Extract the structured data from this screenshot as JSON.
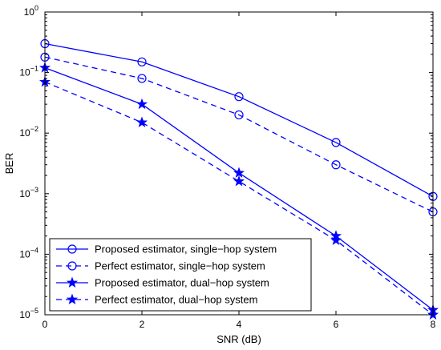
{
  "chart_data": {
    "type": "line",
    "title": "",
    "xlabel": "SNR (dB)",
    "ylabel": "BER",
    "x": [
      0,
      2,
      4,
      6,
      8
    ],
    "xlim": [
      0,
      8
    ],
    "ylim": [
      1e-05,
      1
    ],
    "yscale": "log",
    "x_ticks": [
      "0",
      "2",
      "4",
      "6",
      "8"
    ],
    "y_ticks": [
      {
        "base": "10",
        "exp": "0"
      },
      {
        "base": "10",
        "exp": "−1"
      },
      {
        "base": "10",
        "exp": "−2"
      },
      {
        "base": "10",
        "exp": "−3"
      },
      {
        "base": "10",
        "exp": "−4"
      },
      {
        "base": "10",
        "exp": "−5"
      }
    ],
    "grid": false,
    "legend_position": "bottom-left",
    "line_color": "#0000ff",
    "series": [
      {
        "name": "Proposed estimator, single−hop system",
        "marker": "circle",
        "linestyle": "solid",
        "values": [
          0.3,
          0.15,
          0.04,
          0.007,
          0.0009
        ]
      },
      {
        "name": "Perfect estimator, single−hop system",
        "marker": "circle",
        "linestyle": "dashed",
        "values": [
          0.18,
          0.08,
          0.02,
          0.003,
          0.0005
        ]
      },
      {
        "name": "Proposed estimator, dual−hop system",
        "marker": "star",
        "linestyle": "solid",
        "values": [
          0.12,
          0.03,
          0.0022,
          0.0002,
          1.2e-05
        ]
      },
      {
        "name": "Perfect estimator, dual−hop system",
        "marker": "star",
        "linestyle": "dashed",
        "values": [
          0.07,
          0.015,
          0.0016,
          0.00017,
          1e-05
        ]
      }
    ]
  }
}
